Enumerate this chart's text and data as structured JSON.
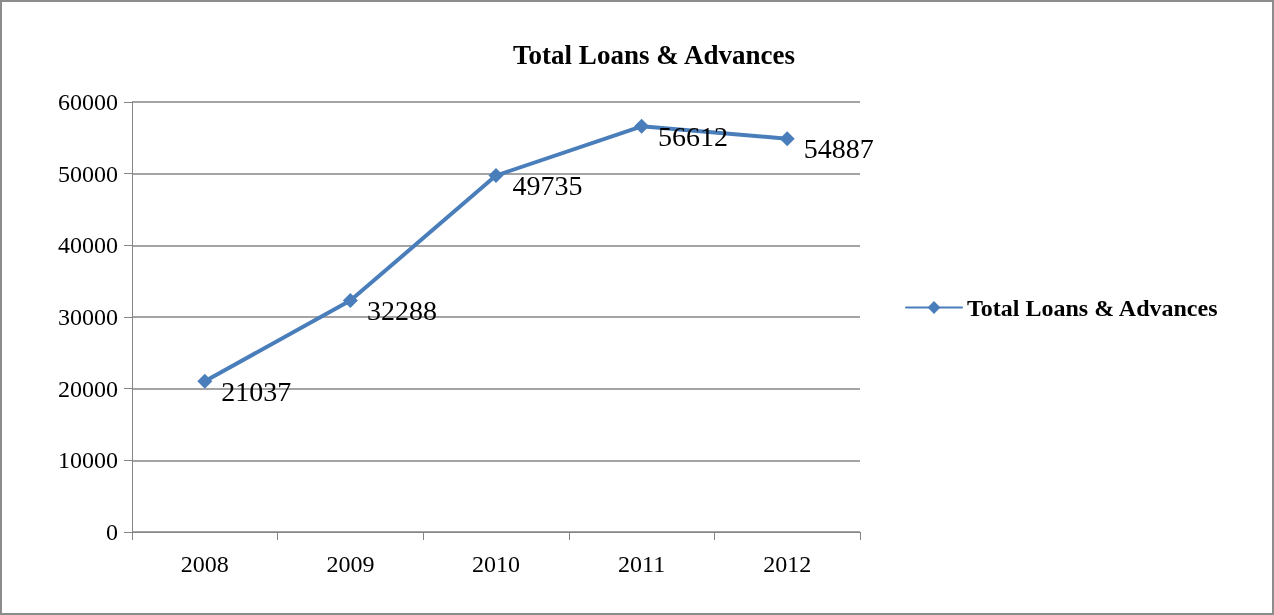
{
  "chart_data": {
    "type": "line",
    "title": "Total Loans & Advances",
    "categories": [
      "2008",
      "2009",
      "2010",
      "2011",
      "2012"
    ],
    "series": [
      {
        "name": "Total Loans & Advances",
        "color": "#4a7ebb",
        "values": [
          21037,
          32288,
          49735,
          56612,
          54887
        ]
      }
    ],
    "ylim": [
      0,
      60000
    ],
    "yticks": [
      0,
      10000,
      20000,
      30000,
      40000,
      50000,
      60000
    ],
    "grid": "y",
    "legend": "right",
    "marker": "diamond",
    "line_style": "solid",
    "data_labels": true
  }
}
